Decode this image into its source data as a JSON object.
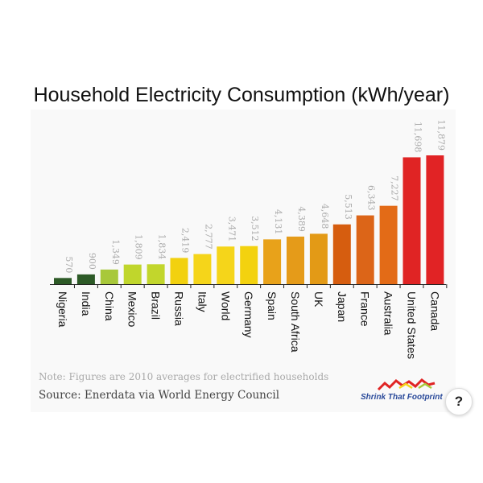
{
  "chart_data": {
    "type": "bar",
    "title": "Household Electricity Consumption (kWh/year)",
    "xlabel": "",
    "ylabel": "",
    "ylim": [
      0,
      12500
    ],
    "grid": false,
    "legend": "none",
    "categories": [
      "Nigeria",
      "India",
      "China",
      "Mexico",
      "Brazil",
      "Russia",
      "Italy",
      "World",
      "Germany",
      "Spain",
      "South Africa",
      "UK",
      "Japan",
      "France",
      "Australia",
      "United States",
      "Canada"
    ],
    "values": [
      570,
      900,
      1349,
      1809,
      1834,
      2419,
      2777,
      3471,
      3512,
      4131,
      4389,
      4648,
      5513,
      6343,
      7227,
      11698,
      11879
    ],
    "value_labels": [
      "570",
      "900",
      "1,349",
      "1,809",
      "1,834",
      "2,419",
      "2,777",
      "3,471",
      "3,512",
      "4,131",
      "4,389",
      "4,648",
      "5,513",
      "6,343",
      "7,227",
      "11,698",
      "11,879"
    ],
    "colors": [
      "#2d5a27",
      "#2d5a27",
      "#a8c83a",
      "#c0d62c",
      "#c2d62c",
      "#f2d10f",
      "#f5d51a",
      "#f5d51a",
      "#f3d20f",
      "#e8a21a",
      "#e59b19",
      "#e39a16",
      "#d65d0f",
      "#dc6518",
      "#e36b17",
      "#e02424",
      "#e12325"
    ]
  },
  "note": "Note: Figures are 2010 averages for electrified households",
  "source": "Source:  Enerdata via World Energy Council",
  "logo_text": "Shrink That Footprint",
  "help_button": "?"
}
